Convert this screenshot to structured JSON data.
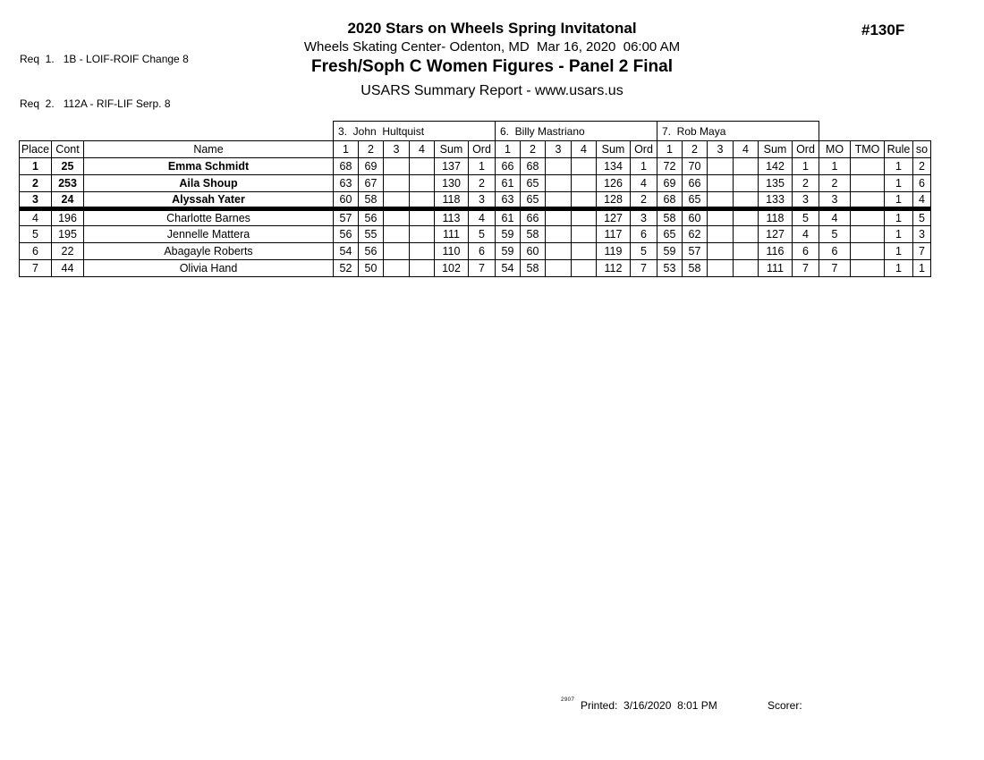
{
  "header": {
    "req_lines": [
      "Req  1.   1B - LOIF-ROIF Change 8",
      "Req  2.   112A - RIF-LIF Serp. 8"
    ],
    "title": "2020 Stars on Wheels Spring Invitatonal",
    "venue_line": "Wheels Skating Center- Odenton, MD  Mar 16, 2020  06:00 AM",
    "event_line": "Fresh/Soph C Women Figures - Panel 2 Final",
    "report_line": "USARS Summary Report - www.usars.us",
    "event_number": "#130F"
  },
  "table": {
    "judges": [
      "3.  John  Hultquist",
      "6.  Billy Mastriano",
      "7.  Rob Maya"
    ],
    "base_columns": [
      "Place",
      "Cont",
      "Name"
    ],
    "judge_columns": [
      "1",
      "2",
      "3",
      "4",
      "Sum",
      "Ord"
    ],
    "tail_columns": [
      "MO",
      "TMO",
      "Rule",
      "so"
    ],
    "rows": [
      {
        "place": "1",
        "cont": "25",
        "name": "Emma Schmidt",
        "bold": true,
        "separator_above": false,
        "judge_scores": [
          [
            "68",
            "69",
            "",
            "",
            "137",
            "1"
          ],
          [
            "66",
            "68",
            "",
            "",
            "134",
            "1"
          ],
          [
            "72",
            "70",
            "",
            "",
            "142",
            "1"
          ]
        ],
        "mo": "1",
        "tmo": "",
        "rule": "1",
        "so": "2"
      },
      {
        "place": "2",
        "cont": "253",
        "name": "Aila Shoup",
        "bold": true,
        "separator_above": false,
        "judge_scores": [
          [
            "63",
            "67",
            "",
            "",
            "130",
            "2"
          ],
          [
            "61",
            "65",
            "",
            "",
            "126",
            "4"
          ],
          [
            "69",
            "66",
            "",
            "",
            "135",
            "2"
          ]
        ],
        "mo": "2",
        "tmo": "",
        "rule": "1",
        "so": "6"
      },
      {
        "place": "3",
        "cont": "24",
        "name": "Alyssah Yater",
        "bold": true,
        "separator_above": false,
        "judge_scores": [
          [
            "60",
            "58",
            "",
            "",
            "118",
            "3"
          ],
          [
            "63",
            "65",
            "",
            "",
            "128",
            "2"
          ],
          [
            "68",
            "65",
            "",
            "",
            "133",
            "3"
          ]
        ],
        "mo": "3",
        "tmo": "",
        "rule": "1",
        "so": "4"
      },
      {
        "place": "4",
        "cont": "196",
        "name": "Charlotte Barnes",
        "bold": false,
        "separator_above": true,
        "judge_scores": [
          [
            "57",
            "56",
            "",
            "",
            "113",
            "4"
          ],
          [
            "61",
            "66",
            "",
            "",
            "127",
            "3"
          ],
          [
            "58",
            "60",
            "",
            "",
            "118",
            "5"
          ]
        ],
        "mo": "4",
        "tmo": "",
        "rule": "1",
        "so": "5"
      },
      {
        "place": "5",
        "cont": "195",
        "name": "Jennelle Mattera",
        "bold": false,
        "separator_above": false,
        "judge_scores": [
          [
            "56",
            "55",
            "",
            "",
            "111",
            "5"
          ],
          [
            "59",
            "58",
            "",
            "",
            "117",
            "6"
          ],
          [
            "65",
            "62",
            "",
            "",
            "127",
            "4"
          ]
        ],
        "mo": "5",
        "tmo": "",
        "rule": "1",
        "so": "3"
      },
      {
        "place": "6",
        "cont": "22",
        "name": "Abagayle Roberts",
        "bold": false,
        "separator_above": false,
        "judge_scores": [
          [
            "54",
            "56",
            "",
            "",
            "110",
            "6"
          ],
          [
            "59",
            "60",
            "",
            "",
            "119",
            "5"
          ],
          [
            "59",
            "57",
            "",
            "",
            "116",
            "6"
          ]
        ],
        "mo": "6",
        "tmo": "",
        "rule": "1",
        "so": "7"
      },
      {
        "place": "7",
        "cont": "44",
        "name": "Olivia Hand",
        "bold": false,
        "separator_above": false,
        "judge_scores": [
          [
            "52",
            "50",
            "",
            "",
            "102",
            "7"
          ],
          [
            "54",
            "58",
            "",
            "",
            "112",
            "7"
          ],
          [
            "53",
            "58",
            "",
            "",
            "111",
            "7"
          ]
        ],
        "mo": "7",
        "tmo": "",
        "rule": "1",
        "so": "1"
      }
    ]
  },
  "footer": {
    "code": "2907",
    "printed_label": "Printed:  3/16/2020  8:01 PM",
    "scorer_label": "Scorer:"
  }
}
